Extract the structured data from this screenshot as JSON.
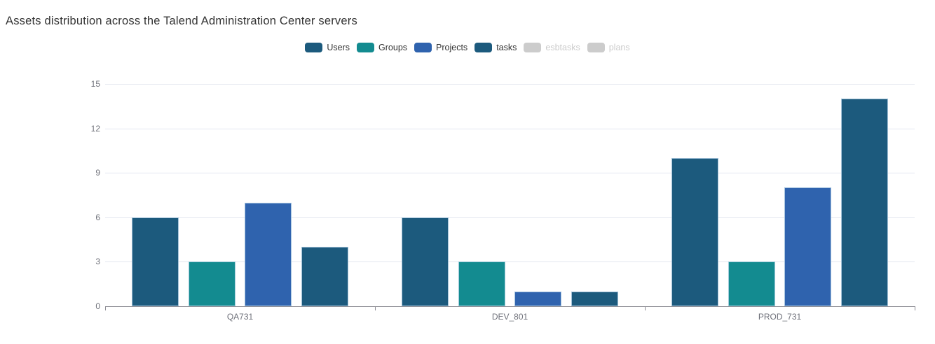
{
  "title": "Assets distribution across the Talend Administration Center servers",
  "disabled_color": "#cccccc",
  "chart_data": {
    "type": "bar",
    "title": "Assets distribution across the Talend Administration Center servers",
    "categories": [
      "QA731",
      "DEV_801",
      "PROD_731"
    ],
    "series": [
      {
        "name": "Users",
        "color": "#1c5a7d",
        "enabled": true,
        "values": [
          6,
          6,
          10
        ]
      },
      {
        "name": "Groups",
        "color": "#138b90",
        "enabled": true,
        "values": [
          3,
          3,
          3
        ]
      },
      {
        "name": "Projects",
        "color": "#2f63ae",
        "enabled": true,
        "values": [
          7,
          1,
          8
        ]
      },
      {
        "name": "tasks",
        "color": "#1c5a7d",
        "enabled": true,
        "values": [
          4,
          1,
          14
        ]
      },
      {
        "name": "esbtasks",
        "color": "#cccccc",
        "enabled": false,
        "values": null
      },
      {
        "name": "plans",
        "color": "#cccccc",
        "enabled": false,
        "values": null
      }
    ],
    "yticks": [
      0,
      3,
      6,
      9,
      12,
      15
    ],
    "ylim": [
      0,
      15
    ],
    "xlabel": "",
    "ylabel": "",
    "grid": true,
    "legend_position": "top-center"
  }
}
